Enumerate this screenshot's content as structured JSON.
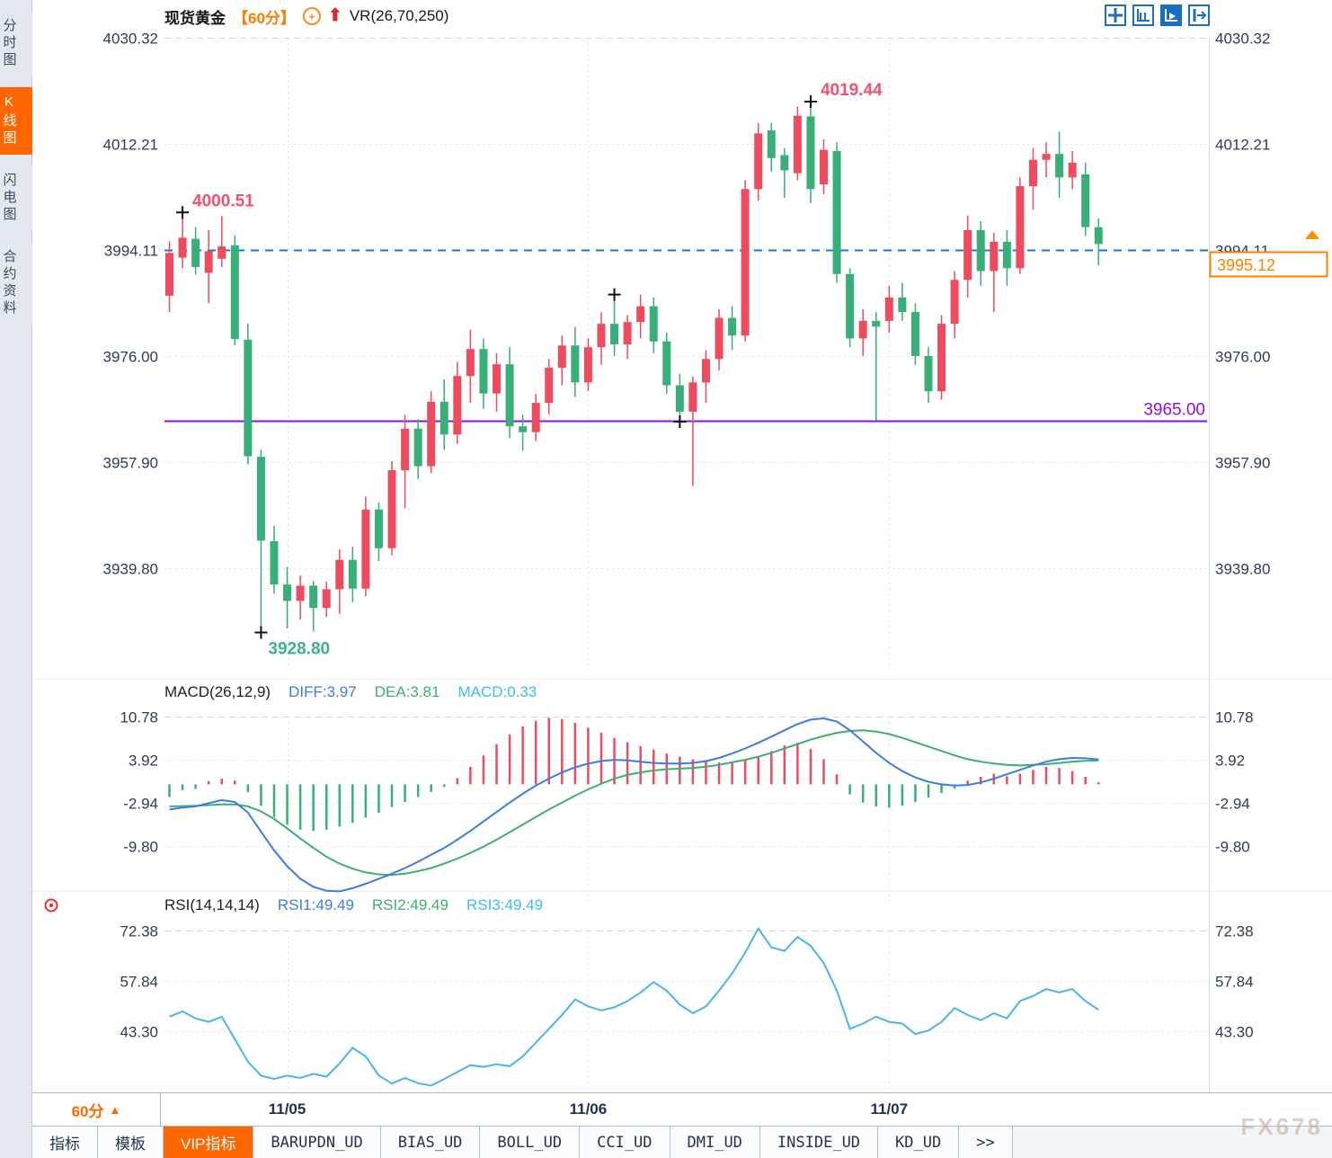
{
  "header": {
    "symbol": "现货黄金",
    "period_tag": "【60分】",
    "indicator": "VR(26,70,250)"
  },
  "toolbar": {
    "icons": [
      "move-icon",
      "fit-scale-icon",
      "auto-scale-icon",
      "pan-right-icon"
    ]
  },
  "sidebar": {
    "items": [
      {
        "label": "分时图",
        "active": false
      },
      {
        "label": "K线图",
        "active": true
      },
      {
        "label": "闪电图",
        "active": false
      },
      {
        "label": "合约资料",
        "active": false
      }
    ]
  },
  "colors": {
    "up": "#ee4b5e",
    "down": "#38ae78",
    "diff_line": "#3d7de2",
    "dea_line": "#3fae72",
    "rsi_line": "#4ab5e6",
    "dashed_line": "#1b76e0",
    "support_line": "#8a10e8",
    "accent_orange": "#ff6600",
    "axis_text": "#2e3c58",
    "annotation_high": "#f4516f",
    "annotation_low": "#3cb485"
  },
  "chart_data": {
    "type": "candlestick",
    "title": "现货黄金 60分",
    "y_ticks_main": [
      4030.32,
      4012.21,
      3994.11,
      3976.0,
      3957.9,
      3939.8
    ],
    "x_labels": [
      {
        "label": "11/05",
        "bar": 9
      },
      {
        "label": "11/06",
        "bar": 32
      },
      {
        "label": "11/07",
        "bar": 55
      }
    ],
    "dashed_price_line": 3994.11,
    "support_line": {
      "price": 3965.0,
      "label": "3965.00"
    },
    "current_price": {
      "value": "3995.12"
    },
    "annotations": [
      {
        "bar": 1,
        "price": 4000.51,
        "text": "4000.51",
        "type": "high"
      },
      {
        "bar": 49,
        "price": 4019.44,
        "text": "4019.44",
        "type": "high"
      },
      {
        "bar": 7,
        "price": 3928.8,
        "text": "3928.80",
        "type": "low"
      },
      {
        "bar": 34,
        "price": 3986.5,
        "text": "",
        "type": "high"
      },
      {
        "bar": 39,
        "price": 3964.8,
        "text": "",
        "type": "low"
      }
    ],
    "candles": [
      [
        3986.3,
        3995.6,
        3983.5,
        3993.6
      ],
      [
        3992.8,
        4000.51,
        3991.0,
        3996.2
      ],
      [
        3996.0,
        3998.0,
        3989.9,
        3991.2
      ],
      [
        3990.2,
        3997.5,
        3985.0,
        3993.9
      ],
      [
        3992.6,
        3999.9,
        3991.2,
        3994.7
      ],
      [
        3994.9,
        3996.6,
        3977.8,
        3978.9
      ],
      [
        3978.8,
        3981.5,
        3957.5,
        3958.9
      ],
      [
        3958.8,
        3960.0,
        3928.8,
        3944.5
      ],
      [
        3944.4,
        3947.0,
        3935.5,
        3937.0
      ],
      [
        3937.0,
        3940.0,
        3929.5,
        3934.2
      ],
      [
        3934.2,
        3938.5,
        3931.0,
        3936.8
      ],
      [
        3936.8,
        3937.6,
        3929.0,
        3933.0
      ],
      [
        3933.0,
        3937.5,
        3931.5,
        3936.2
      ],
      [
        3936.2,
        3943.0,
        3932.0,
        3941.2
      ],
      [
        3941.2,
        3943.5,
        3934.0,
        3936.3
      ],
      [
        3936.3,
        3952.0,
        3935.0,
        3949.8
      ],
      [
        3949.8,
        3951.0,
        3941.0,
        3943.2
      ],
      [
        3943.2,
        3958.0,
        3942.0,
        3956.5
      ],
      [
        3956.5,
        3966.0,
        3950.0,
        3963.6
      ],
      [
        3963.6,
        3965.2,
        3955.0,
        3957.2
      ],
      [
        3957.2,
        3970.0,
        3956.0,
        3968.2
      ],
      [
        3968.2,
        3972.0,
        3960.0,
        3962.6
      ],
      [
        3962.6,
        3975.0,
        3961.0,
        3972.6
      ],
      [
        3972.6,
        3980.5,
        3968.0,
        3977.2
      ],
      [
        3977.2,
        3979.0,
        3967.0,
        3969.6
      ],
      [
        3969.6,
        3976.5,
        3966.5,
        3974.6
      ],
      [
        3974.6,
        3977.5,
        3962.0,
        3964.0
      ],
      [
        3964.0,
        3966.0,
        3959.8,
        3963.0
      ],
      [
        3963.0,
        3969.5,
        3961.5,
        3968.0
      ],
      [
        3968.0,
        3975.5,
        3966.0,
        3974.0
      ],
      [
        3974.0,
        3979.5,
        3971.0,
        3977.8
      ],
      [
        3977.8,
        3981.0,
        3969.0,
        3971.5
      ],
      [
        3971.5,
        3979.0,
        3970.0,
        3977.5
      ],
      [
        3977.5,
        3983.5,
        3974.5,
        3981.5
      ],
      [
        3981.5,
        3986.5,
        3976.0,
        3978.0
      ],
      [
        3978.0,
        3983.0,
        3975.5,
        3981.8
      ],
      [
        3981.8,
        3986.5,
        3979.0,
        3984.5
      ],
      [
        3984.5,
        3986.0,
        3976.5,
        3978.5
      ],
      [
        3978.5,
        3980.0,
        3969.5,
        3971.0
      ],
      [
        3971.0,
        3973.0,
        3964.8,
        3966.5
      ],
      [
        3966.5,
        3972.5,
        3953.8,
        3971.5
      ],
      [
        3971.5,
        3977.0,
        3968.0,
        3975.5
      ],
      [
        3975.5,
        3984.0,
        3973.5,
        3982.5
      ],
      [
        3982.5,
        3984.5,
        3977.0,
        3979.5
      ],
      [
        3979.5,
        4006.0,
        3978.5,
        4004.5
      ],
      [
        4004.5,
        4015.8,
        4002.5,
        4014.0
      ],
      [
        4014.5,
        4015.8,
        4007.5,
        4009.8
      ],
      [
        4010.3,
        4011.5,
        4003.0,
        4007.7
      ],
      [
        4007.2,
        4018.6,
        4006.0,
        4017.0
      ],
      [
        4016.9,
        4019.44,
        4002.1,
        4004.5
      ],
      [
        4005.3,
        4013.0,
        4003.6,
        4011.2
      ],
      [
        4011.0,
        4012.5,
        3988.5,
        3990.0
      ],
      [
        3990.0,
        3991.0,
        3977.5,
        3979.0
      ],
      [
        3979.0,
        3984.0,
        3976.0,
        3982.0
      ],
      [
        3982.0,
        3983.5,
        3965.0,
        3981.0
      ],
      [
        3982.0,
        3988.0,
        3980.0,
        3986.0
      ],
      [
        3986.0,
        3988.5,
        3982.0,
        3983.5
      ],
      [
        3983.5,
        3985.0,
        3974.5,
        3976.0
      ],
      [
        3976.0,
        3977.5,
        3968.0,
        3970.0
      ],
      [
        3970.0,
        3983.0,
        3968.5,
        3981.5
      ],
      [
        3981.5,
        3990.5,
        3979.0,
        3989.0
      ],
      [
        3989.0,
        4000.0,
        3986.0,
        3997.5
      ],
      [
        3997.5,
        3999.0,
        3988.0,
        3990.5
      ],
      [
        3990.5,
        3997.0,
        3983.5,
        3995.5
      ],
      [
        3995.5,
        3997.5,
        3988.0,
        3991.0
      ],
      [
        3991.0,
        4006.5,
        3990.0,
        4005.0
      ],
      [
        4005.0,
        4011.5,
        4001.0,
        4009.5
      ],
      [
        4009.5,
        4012.5,
        4006.5,
        4010.5
      ],
      [
        4010.5,
        4014.3,
        4003.0,
        4006.5
      ],
      [
        4006.5,
        4011.0,
        4004.5,
        4009.0
      ],
      [
        4007.0,
        4009.0,
        3996.5,
        3998.0
      ],
      [
        3998.0,
        3999.5,
        3991.5,
        3995.12
      ]
    ],
    "macd": {
      "title": "MACD(26,12,9)",
      "diff_label": "DIFF:3.97",
      "dea_label": "DEA:3.81",
      "macd_label": "MACD:0.33",
      "y_ticks": [
        10.78,
        3.92,
        -2.94,
        -9.8
      ],
      "hist": [
        -2.0,
        -0.9,
        -0.7,
        0.5,
        0.9,
        0.6,
        -1.2,
        -3.4,
        -5.2,
        -6.4,
        -7.2,
        -7.4,
        -7.2,
        -6.7,
        -6.1,
        -5.3,
        -4.5,
        -3.6,
        -2.8,
        -2.0,
        -1.2,
        -0.4,
        1.0,
        2.8,
        4.6,
        6.4,
        7.9,
        9.2,
        10.1,
        10.6,
        10.4,
        9.8,
        9.0,
        8.2,
        7.4,
        6.7,
        6.1,
        5.5,
        4.9,
        4.4,
        4.0,
        3.7,
        3.5,
        3.6,
        3.9,
        4.5,
        5.3,
        6.2,
        6.6,
        5.6,
        4.0,
        1.6,
        -1.6,
        -2.9,
        -3.5,
        -3.7,
        -3.4,
        -2.8,
        -2.1,
        -1.4,
        -0.7,
        0.6,
        1.2,
        1.7,
        1.3,
        1.7,
        2.3,
        2.8,
        2.6,
        2.1,
        1.2,
        0.33
      ],
      "diff": [
        -4.0,
        -3.7,
        -3.5,
        -3.0,
        -2.5,
        -2.8,
        -4.5,
        -7.5,
        -10.5,
        -13.0,
        -15.0,
        -16.3,
        -16.9,
        -17.0,
        -16.5,
        -15.8,
        -15.0,
        -14.2,
        -13.3,
        -12.3,
        -11.2,
        -10.1,
        -8.8,
        -7.4,
        -5.9,
        -4.4,
        -2.9,
        -1.5,
        -0.2,
        0.9,
        1.9,
        2.7,
        3.3,
        3.7,
        3.9,
        3.8,
        3.6,
        3.4,
        3.3,
        3.3,
        3.4,
        3.7,
        4.2,
        4.9,
        5.7,
        6.6,
        7.6,
        8.6,
        9.6,
        10.3,
        10.5,
        10.0,
        8.6,
        6.8,
        5.0,
        3.4,
        2.1,
        1.1,
        0.4,
        0.0,
        -0.2,
        -0.1,
        0.3,
        0.9,
        1.6,
        2.3,
        3.0,
        3.6,
        4.0,
        4.2,
        4.15,
        3.97
      ],
      "dea": [
        -3.5,
        -3.45,
        -3.4,
        -3.3,
        -3.2,
        -3.2,
        -3.5,
        -4.3,
        -5.5,
        -7.0,
        -8.6,
        -10.1,
        -11.5,
        -12.6,
        -13.4,
        -14.0,
        -14.3,
        -14.4,
        -14.2,
        -13.8,
        -13.3,
        -12.6,
        -11.8,
        -10.9,
        -9.9,
        -8.8,
        -7.6,
        -6.4,
        -5.2,
        -4.0,
        -2.9,
        -1.8,
        -0.8,
        0.1,
        0.9,
        1.5,
        1.9,
        2.2,
        2.4,
        2.5,
        2.6,
        2.8,
        3.1,
        3.5,
        3.9,
        4.4,
        5.0,
        5.7,
        6.4,
        7.1,
        7.7,
        8.2,
        8.5,
        8.6,
        8.4,
        8.0,
        7.4,
        6.7,
        6.0,
        5.3,
        4.6,
        4.0,
        3.6,
        3.3,
        3.1,
        3.0,
        3.1,
        3.2,
        3.4,
        3.6,
        3.75,
        3.81
      ]
    },
    "rsi": {
      "title": "RSI(14,14,14)",
      "rsi1_label": "RSI1:49.49",
      "rsi2_label": "RSI2:49.49",
      "rsi3_label": "RSI3:49.49",
      "y_ticks": [
        72.38,
        57.84,
        43.3
      ],
      "values": [
        47.5,
        49.0,
        47.0,
        46.0,
        47.5,
        41.0,
        34.5,
        30.5,
        29.5,
        30.5,
        29.8,
        31.0,
        30.2,
        34.0,
        38.5,
        36.0,
        30.5,
        28.2,
        29.8,
        28.3,
        27.6,
        29.5,
        31.5,
        33.5,
        33.0,
        33.8,
        33.2,
        36.0,
        40.0,
        44.0,
        48.0,
        52.5,
        50.5,
        49.3,
        50.2,
        52.0,
        54.5,
        57.5,
        55.0,
        51.0,
        48.5,
        50.5,
        55.0,
        60.0,
        66.0,
        73.0,
        67.5,
        66.5,
        70.5,
        68.0,
        63.0,
        55.0,
        44.0,
        45.5,
        47.5,
        46.0,
        45.5,
        42.5,
        43.5,
        46.0,
        50.0,
        48.0,
        46.5,
        48.5,
        47.0,
        52.0,
        53.5,
        55.5,
        54.5,
        55.5,
        52.0,
        49.49
      ]
    }
  },
  "footer": {
    "period": "60分",
    "tabs": [
      {
        "label": "指标",
        "cn": true,
        "active": false
      },
      {
        "label": "模板",
        "cn": true,
        "active": false
      },
      {
        "label": "VIP指标",
        "cn": true,
        "active": true
      },
      {
        "label": "BARUPDN_UD",
        "cn": false,
        "active": false
      },
      {
        "label": "BIAS_UD",
        "cn": false,
        "active": false
      },
      {
        "label": "BOLL_UD",
        "cn": false,
        "active": false
      },
      {
        "label": "CCI_UD",
        "cn": false,
        "active": false
      },
      {
        "label": "DMI_UD",
        "cn": false,
        "active": false
      },
      {
        "label": "INSIDE_UD",
        "cn": false,
        "active": false
      },
      {
        "label": "KD_UD",
        "cn": false,
        "active": false
      },
      {
        "label": ">>",
        "cn": false,
        "active": false
      }
    ]
  },
  "watermark": "FX678"
}
